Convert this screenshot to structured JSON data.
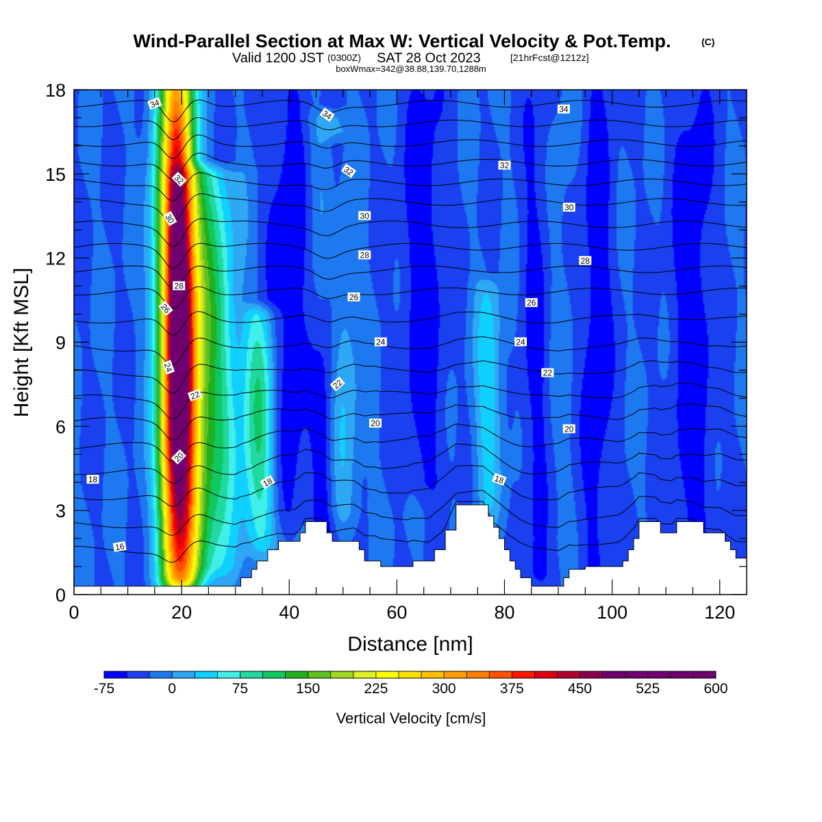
{
  "chart_data": {
    "type": "heatmap",
    "title": "Wind-Parallel Section at Max W: Vertical Velocity & Pot.Temp.",
    "title_mark": "(C)",
    "subtitle_main": "Valid 1200 JST",
    "subtitle_utc": "(0300Z)",
    "subtitle_date": "SAT 28 Oct 2023",
    "subtitle_fcst": "[21hrFcst@1212z]",
    "subtitle2": "boxWmax=342@38.88,139.70,1288m",
    "xlabel": "Distance [nm]",
    "ylabel": "Height [Kft MSL]",
    "xlim": [
      0,
      125
    ],
    "ylim": [
      0,
      18
    ],
    "xticks": [
      "0",
      "20",
      "40",
      "60",
      "80",
      "100",
      "120"
    ],
    "yticks": [
      "0",
      "3",
      "6",
      "9",
      "12",
      "15",
      "18"
    ],
    "colorbar": {
      "label": "Vertical Velocity [cm/s]",
      "min": -75,
      "max": 600,
      "step": 25,
      "tick_labels": [
        "-75",
        "0",
        "75",
        "150",
        "225",
        "300",
        "375",
        "450",
        "525",
        "600"
      ],
      "colors": [
        "#0000ff",
        "#1a40f0",
        "#1e78f0",
        "#2ea8f4",
        "#10d0ff",
        "#40f0e8",
        "#20d8a0",
        "#10c860",
        "#20b020",
        "#60c020",
        "#a0d820",
        "#e0f020",
        "#ffff00",
        "#ffe000",
        "#ffc000",
        "#ffa000",
        "#ff8000",
        "#ff5000",
        "#ff1800",
        "#e00010",
        "#b00030",
        "#880050",
        "#700070"
      ]
    },
    "background_value": -25,
    "updrafts": [
      {
        "name": "main updraft",
        "x": 19.5,
        "y_top": 18,
        "y_base": 0.6,
        "tilt": -0.6,
        "peak": 560,
        "width": 3.3
      },
      {
        "name": "secondary updraft",
        "x": 25,
        "y_top": 15,
        "y_base": 1,
        "tilt": -1,
        "peak": 160,
        "width": 5.5
      },
      {
        "name": "updraft near 35 nm",
        "x": 34.5,
        "y_top": 10,
        "y_base": 2,
        "tilt": 0,
        "peak": 120,
        "width": 3
      },
      {
        "name": "updraft near 50 nm",
        "x": 49.5,
        "y_top": 17,
        "y_base": 3,
        "tilt": -2,
        "peak": 75,
        "width": 3.5
      },
      {
        "name": "updraft near 77 nm",
        "x": 77,
        "y_top": 11,
        "y_base": 3.2,
        "tilt": 0,
        "peak": 70,
        "width": 2.5
      },
      {
        "name": "weak ascent 88 nm",
        "x": 88,
        "y_top": 18,
        "y_base": 2,
        "tilt": 0,
        "peak": 20,
        "width": 5
      }
    ],
    "downdrafts": [
      {
        "name": "downdraft near 45 nm",
        "x": 46.5,
        "y_top": 16,
        "y_base": 2.5,
        "tilt": 2,
        "peak": -75,
        "width": 2.5
      },
      {
        "name": "downdraft near 17 nm",
        "x": 17,
        "y_top": 18,
        "y_base": 7,
        "tilt": 0,
        "peak": -60,
        "width": 1.4
      },
      {
        "name": "sinking near 40 nm",
        "x": 40,
        "y_top": 18,
        "y_base": 3,
        "tilt": 0,
        "peak": -45,
        "width": 4
      },
      {
        "name": "sinking near 65 nm",
        "x": 65,
        "y_top": 18,
        "y_base": 4,
        "tilt": 0,
        "peak": -45,
        "width": 4
      },
      {
        "name": "sinking near 85 nm",
        "x": 86,
        "y_top": 18,
        "y_base": 0.5,
        "tilt": 0,
        "peak": -50,
        "width": 3
      },
      {
        "name": "sinking near 97 nm",
        "x": 97,
        "y_top": 18,
        "y_base": 1,
        "tilt": 0,
        "peak": -45,
        "width": 3
      },
      {
        "name": "sinking near 115 nm",
        "x": 115,
        "y_top": 18,
        "y_base": 1,
        "tilt": 0,
        "peak": -45,
        "width": 4
      }
    ],
    "terrain": [
      [
        0,
        0.3
      ],
      [
        30,
        0.3
      ],
      [
        31,
        0.6
      ],
      [
        33,
        0.9
      ],
      [
        34,
        1.2
      ],
      [
        36,
        1.6
      ],
      [
        38,
        1.9
      ],
      [
        41,
        1.9
      ],
      [
        42,
        2.2
      ],
      [
        43,
        2.6
      ],
      [
        46,
        2.6
      ],
      [
        47,
        2.2
      ],
      [
        48,
        1.9
      ],
      [
        52,
        1.9
      ],
      [
        53,
        1.6
      ],
      [
        54,
        1.2
      ],
      [
        56,
        1.2
      ],
      [
        57,
        1.0
      ],
      [
        62,
        1.0
      ],
      [
        63,
        1.2
      ],
      [
        66,
        1.2
      ],
      [
        67,
        1.6
      ],
      [
        69,
        2.3
      ],
      [
        71,
        3.2
      ],
      [
        76,
        3.2
      ],
      [
        77,
        2.8
      ],
      [
        78,
        2.4
      ],
      [
        79,
        2.0
      ],
      [
        80,
        1.6
      ],
      [
        81,
        1.2
      ],
      [
        82,
        0.9
      ],
      [
        83,
        0.6
      ],
      [
        85,
        0.3
      ],
      [
        90,
        0.3
      ],
      [
        91,
        0.6
      ],
      [
        92,
        0.9
      ],
      [
        93,
        0.9
      ],
      [
        95,
        1.0
      ],
      [
        101,
        1.0
      ],
      [
        102,
        1.2
      ],
      [
        103,
        1.6
      ],
      [
        104,
        2.0
      ],
      [
        105,
        2.6
      ],
      [
        108,
        2.6
      ],
      [
        109,
        2.2
      ],
      [
        111,
        2.2
      ],
      [
        112,
        2.6
      ],
      [
        115,
        2.6
      ],
      [
        117,
        2.2
      ],
      [
        120,
        2.2
      ],
      [
        121,
        1.9
      ],
      [
        122,
        1.6
      ],
      [
        123,
        1.3
      ],
      [
        125,
        1.2
      ]
    ],
    "isentropes": {
      "levels": [
        16,
        17,
        18,
        19,
        20,
        21,
        22,
        23,
        24,
        25,
        26,
        27,
        28,
        29,
        30,
        31,
        32,
        33,
        34,
        35
      ],
      "base_height": [
        1.6,
        2.5,
        3.5,
        4.4,
        5.3,
        6.2,
        7.0,
        7.9,
        8.8,
        9.8,
        10.8,
        11.6,
        12.4,
        13.2,
        14.0,
        14.7,
        15.4,
        16.1,
        16.8,
        17.5
      ],
      "labels": [
        {
          "text": "34",
          "x": 15,
          "y": 17.5,
          "angle": -20
        },
        {
          "text": "34",
          "x": 47,
          "y": 17.1,
          "angle": 35
        },
        {
          "text": "34",
          "x": 91,
          "y": 17.3,
          "angle": 0
        },
        {
          "text": "32",
          "x": 19.5,
          "y": 14.8,
          "angle": 45
        },
        {
          "text": "32",
          "x": 51,
          "y": 15.1,
          "angle": 35
        },
        {
          "text": "32",
          "x": 80,
          "y": 15.3,
          "angle": 0
        },
        {
          "text": "30",
          "x": 17.8,
          "y": 13.4,
          "angle": 60
        },
        {
          "text": "30",
          "x": 54,
          "y": 13.5,
          "angle": 0
        },
        {
          "text": "30",
          "x": 92,
          "y": 13.8,
          "angle": 0
        },
        {
          "text": "28",
          "x": 54,
          "y": 12.1,
          "angle": 0
        },
        {
          "text": "28",
          "x": 95,
          "y": 11.9,
          "angle": 0
        },
        {
          "text": "28",
          "x": 19.5,
          "y": 11.0,
          "angle": 0
        },
        {
          "text": "26",
          "x": 17,
          "y": 10.2,
          "angle": 50
        },
        {
          "text": "26",
          "x": 52,
          "y": 10.6,
          "angle": 0
        },
        {
          "text": "26",
          "x": 85,
          "y": 10.4,
          "angle": 0
        },
        {
          "text": "24",
          "x": 57,
          "y": 9.0,
          "angle": 0
        },
        {
          "text": "24",
          "x": 83,
          "y": 9.0,
          "angle": 0
        },
        {
          "text": "24",
          "x": 17.5,
          "y": 8.1,
          "angle": 70
        },
        {
          "text": "22",
          "x": 22.5,
          "y": 7.1,
          "angle": -20
        },
        {
          "text": "22",
          "x": 49,
          "y": 7.5,
          "angle": -40
        },
        {
          "text": "22",
          "x": 88,
          "y": 7.9,
          "angle": 0
        },
        {
          "text": "20",
          "x": 56,
          "y": 6.1,
          "angle": 0
        },
        {
          "text": "20",
          "x": 92,
          "y": 5.9,
          "angle": 0
        },
        {
          "text": "20",
          "x": 19.5,
          "y": 4.9,
          "angle": -45
        },
        {
          "text": "18",
          "x": 3.5,
          "y": 4.1,
          "angle": 0
        },
        {
          "text": "18",
          "x": 36,
          "y": 4.0,
          "angle": -30
        },
        {
          "text": "18",
          "x": 79,
          "y": 4.1,
          "angle": 20
        },
        {
          "text": "16",
          "x": 8.5,
          "y": 1.7,
          "angle": -10
        }
      ]
    }
  }
}
